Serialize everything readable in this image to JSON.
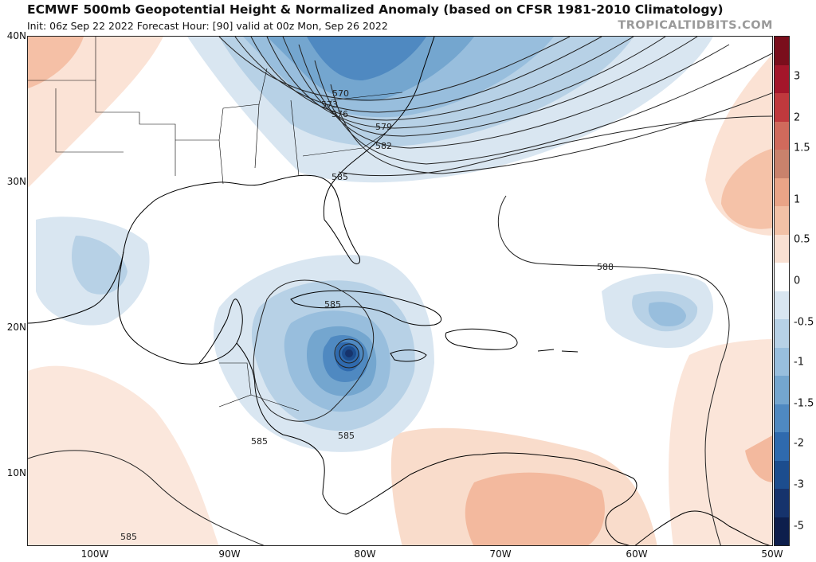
{
  "header": {
    "title": "ECMWF 500mb Geopotential Height & Normalized Anomaly (based on CFSR 1981-2010 Climatology)",
    "subtitle": "Init: 06z Sep 22 2022   Forecast Hour: [90]   valid at 00z Mon, Sep 26 2022",
    "brand": "TROPICALTIDBITS.COM"
  },
  "axes": {
    "lat_labels": [
      "40N",
      "30N",
      "20N",
      "10N"
    ],
    "lon_labels": [
      "100W",
      "90W",
      "80W",
      "70W",
      "60W",
      "50W"
    ]
  },
  "contours": {
    "labels": [
      "570",
      "573",
      "576",
      "579",
      "582",
      "585",
      "588",
      "585",
      "585",
      "585",
      "585"
    ]
  },
  "colorbar": {
    "labels": [
      "3",
      "2",
      "1.5",
      "1",
      "0.5",
      "0",
      "-0.5",
      "-1",
      "-1.5",
      "-2",
      "-3",
      "-5"
    ],
    "colors": [
      "#7a0e1c",
      "#a4162a",
      "#c0393d",
      "#d06a5c",
      "#c9826c",
      "#e9a487",
      "#f2c1a6",
      "#f9e0d2",
      "#ffffff",
      "#d9e6f1",
      "#b7d1e6",
      "#98bedd",
      "#74a6cf",
      "#4f89c1",
      "#2f6aae",
      "#1c4d8e",
      "#16336c",
      "#0d1e4c"
    ]
  }
}
